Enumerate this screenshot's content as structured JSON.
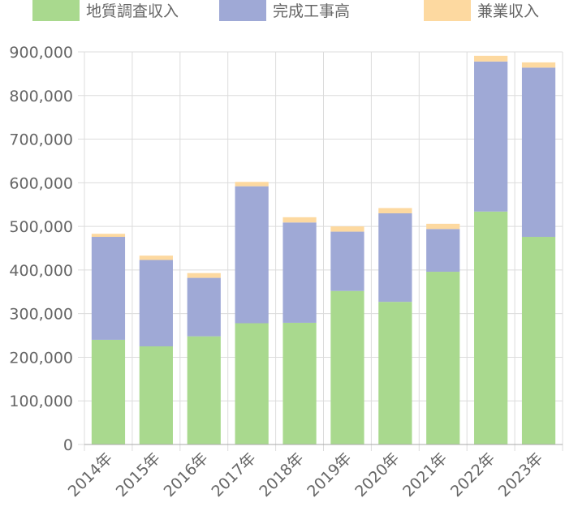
{
  "chart_data": {
    "type": "bar",
    "stacked": true,
    "categories": [
      "2014年",
      "2015年",
      "2016年",
      "2017年",
      "2018年",
      "2019年",
      "2020年",
      "2021年",
      "2022年",
      "2023年"
    ],
    "series": [
      {
        "name": "地質調査収入",
        "color": "#a9d98e",
        "values": [
          240000,
          225000,
          248000,
          278000,
          279000,
          352000,
          327000,
          396000,
          534000,
          476000
        ]
      },
      {
        "name": "完成工事高",
        "color": "#9fa9d6",
        "values": [
          236000,
          198000,
          134000,
          314000,
          230000,
          136000,
          203000,
          98000,
          344000,
          388000
        ]
      },
      {
        "name": "兼業収入",
        "color": "#fdd9a0",
        "values": [
          7000,
          10000,
          11000,
          10000,
          12000,
          12000,
          12000,
          12000,
          13000,
          12000
        ]
      }
    ],
    "title": "",
    "xlabel": "",
    "ylabel": "",
    "ylim": [
      0,
      900000
    ],
    "yticks": [
      "0",
      "100,000",
      "200,000",
      "300,000",
      "400,000",
      "500,000",
      "600,000",
      "700,000",
      "800,000",
      "900,000"
    ],
    "grid": true,
    "legend": "top"
  }
}
